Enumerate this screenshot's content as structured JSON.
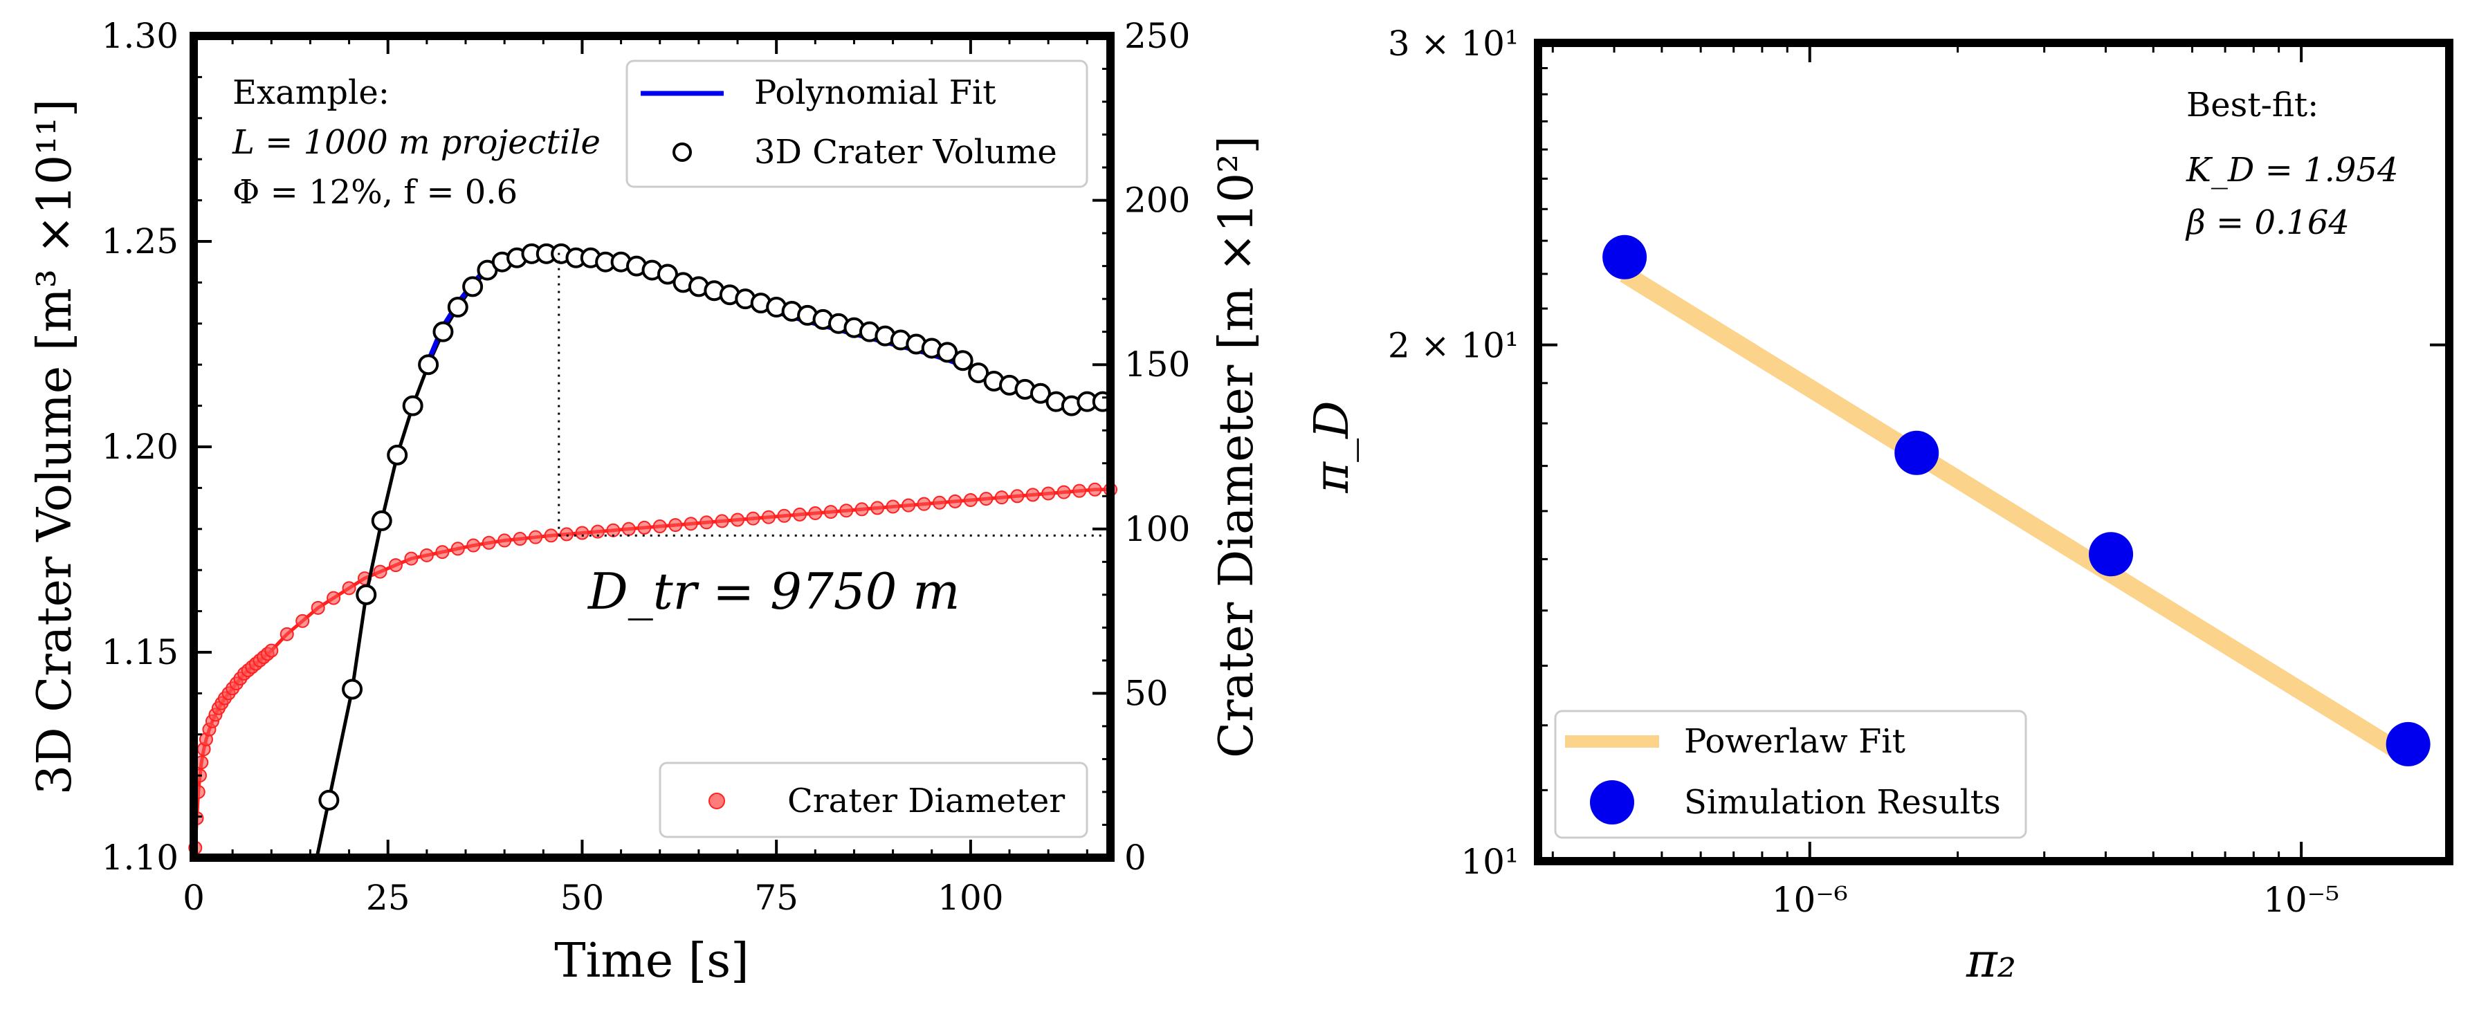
{
  "chart_data": [
    {
      "type": "line",
      "panel": "left",
      "xlabel": "Time [s]",
      "ylabel_left": "3D Crater Volume [m³ ×10¹¹]",
      "ylabel_right": "Crater Diameter [m ×10²]",
      "xlim": [
        0,
        118
      ],
      "ylim_left": [
        1.1,
        1.3
      ],
      "ylim_right": [
        0,
        250
      ],
      "xticks": [
        "0",
        "25",
        "50",
        "75",
        "100"
      ],
      "yticks_left": [
        "1.10",
        "1.15",
        "1.20",
        "1.25",
        "1.30"
      ],
      "yticks_right": [
        "0",
        "50",
        "100",
        "150",
        "200",
        "250"
      ],
      "annotation_box": [
        "Example:",
        "L = 1000 m projectile",
        "Φ = 12%, f = 0.6"
      ],
      "dtr_label": "D_tr = 9750 m",
      "dtr_time": 47,
      "dtr_diameter": 98,
      "legend_top": [
        "Polynomial Fit",
        "3D Crater Volume"
      ],
      "legend_bottom": [
        "Crater Diameter"
      ],
      "series": [
        {
          "name": "3D Crater Volume",
          "axis": "left",
          "color": "#000000",
          "x": [
            17.4,
            20.4,
            22.2,
            24.2,
            26.2,
            28.2,
            30.2,
            32.1,
            34.0,
            35.9,
            37.8,
            39.7,
            41.6,
            43.5,
            45.4,
            47.3,
            49.2,
            51.1,
            53.0,
            55.0,
            57.0,
            59.0,
            61.0,
            63.0,
            65.0,
            67.0,
            69.0,
            71.0,
            73.0,
            75.0,
            77.0,
            79.0,
            81.0,
            83.0,
            85.0,
            87.0,
            89.0,
            91.0,
            93.0,
            95.0,
            97.0,
            99.0,
            101.0,
            103.0,
            105.0,
            107.0,
            109.0,
            111.0,
            113.0,
            115.0,
            117.0
          ],
          "y": [
            1.114,
            1.141,
            1.164,
            1.182,
            1.198,
            1.21,
            1.22,
            1.228,
            1.234,
            1.239,
            1.243,
            1.245,
            1.246,
            1.247,
            1.247,
            1.247,
            1.246,
            1.246,
            1.245,
            1.245,
            1.244,
            1.243,
            1.242,
            1.24,
            1.239,
            1.238,
            1.237,
            1.236,
            1.235,
            1.234,
            1.233,
            1.232,
            1.231,
            1.23,
            1.229,
            1.228,
            1.227,
            1.226,
            1.225,
            1.224,
            1.223,
            1.221,
            1.218,
            1.216,
            1.215,
            1.214,
            1.213,
            1.211,
            1.21,
            1.211,
            1.211
          ]
        },
        {
          "name": "Polynomial Fit",
          "axis": "left",
          "color": "#0000ee",
          "x": [
            30,
            32,
            34,
            36,
            38,
            40,
            42,
            44,
            46,
            48,
            50,
            52,
            55,
            58,
            61,
            64,
            67,
            70,
            73,
            76,
            79,
            82,
            85,
            88,
            91,
            94,
            97,
            99
          ],
          "y": [
            1.22,
            1.229,
            1.235,
            1.24,
            1.244,
            1.246,
            1.247,
            1.2475,
            1.2475,
            1.2472,
            1.2468,
            1.2462,
            1.245,
            1.2435,
            1.2418,
            1.24,
            1.238,
            1.236,
            1.234,
            1.2322,
            1.2305,
            1.229,
            1.2275,
            1.226,
            1.2245,
            1.223,
            1.2212,
            1.2198
          ]
        },
        {
          "name": "Crater Diameter",
          "axis": "right",
          "color": "#ff2020",
          "x": [
            0.2,
            0.4,
            0.6,
            0.8,
            1.0,
            1.3,
            1.6,
            2.0,
            2.4,
            2.8,
            3.2,
            3.6,
            4.0,
            4.5,
            5.0,
            5.5,
            6.0,
            6.5,
            7.0,
            7.5,
            8.0,
            8.5,
            9.0,
            9.5,
            10.0,
            12,
            14,
            16,
            18,
            20,
            22,
            24,
            26,
            28,
            30,
            32,
            34,
            36,
            38,
            40,
            42,
            44,
            46,
            48,
            50,
            52,
            54,
            56,
            58,
            60,
            62,
            64,
            66,
            68,
            70,
            72,
            74,
            76,
            78,
            80,
            82,
            84,
            86,
            88,
            90,
            92,
            94,
            96,
            98,
            100,
            102,
            104,
            106,
            108,
            110,
            112,
            114,
            116,
            118
          ],
          "y": [
            3,
            12,
            20,
            25,
            29,
            33,
            36,
            39,
            41.5,
            43.5,
            45.5,
            47,
            48.5,
            50,
            51.5,
            53,
            54.5,
            56,
            57,
            58,
            59,
            60,
            61,
            62,
            63,
            68,
            72,
            76,
            79,
            82,
            85,
            87,
            89,
            91,
            92,
            93,
            94,
            95,
            95.8,
            96.5,
            97,
            97.5,
            98,
            98.4,
            98.8,
            99.2,
            99.6,
            100,
            100.4,
            100.8,
            101.2,
            101.6,
            102,
            102.4,
            102.8,
            103.2,
            103.6,
            104,
            104.4,
            104.8,
            105.2,
            105.6,
            106,
            106.4,
            106.8,
            107.2,
            107.6,
            108,
            108.4,
            108.8,
            109.2,
            109.6,
            110,
            110.4,
            110.8,
            111.2,
            111.6,
            112,
            112
          ]
        }
      ]
    },
    {
      "type": "scatter",
      "panel": "right",
      "xscale": "log",
      "yscale": "log",
      "xlabel": "π₂",
      "ylabel": "π_D",
      "xlim": [
        2.8e-07,
        2e-05
      ],
      "ylim": [
        10,
        30
      ],
      "yticks": [
        {
          "value": 10,
          "label": "10¹"
        },
        {
          "value": 20,
          "label": "2 × 10¹"
        },
        {
          "value": 30,
          "label": "3 × 10¹"
        }
      ],
      "xticks": [
        {
          "value": 1e-06,
          "label": "10⁻⁶"
        },
        {
          "value": 1e-05,
          "label": "10⁻⁵"
        }
      ],
      "bestfit_title": "Best-fit:",
      "bestfit_kd": "K_D = 1.954",
      "bestfit_beta": "β = 0.164",
      "legend": [
        "Powerlaw Fit",
        "Simulation Results"
      ],
      "series": [
        {
          "name": "Simulation Results",
          "color": "#0000ee",
          "x": [
            4.2e-07,
            1.65e-06,
            4.1e-06,
            1.65e-05
          ],
          "y": [
            22.5,
            17.3,
            15.1,
            11.7
          ]
        },
        {
          "name": "Powerlaw Fit",
          "color": "#fbd38a",
          "x": [
            4.2e-07,
            1.65e-05
          ],
          "y": [
            22.0,
            11.5
          ]
        }
      ]
    }
  ]
}
